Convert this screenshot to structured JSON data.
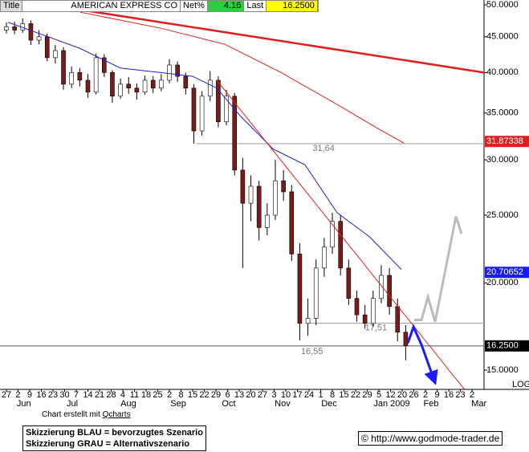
{
  "header": {
    "tab": "Title",
    "symbol": "AMERICAN EXPRESS CO",
    "net_label": "Net%",
    "net_value": "4.16",
    "last_label": "Last",
    "last_value": "16.2500"
  },
  "chart_data": {
    "type": "candlestick",
    "log_scale": true,
    "scale_label": "LOG",
    "xlim": [
      -0.55,
      41.03
    ],
    "ylim": [
      14.08,
      50.8
    ],
    "yticks": [
      {
        "value": 50,
        "label": "50.0000"
      },
      {
        "value": 45,
        "label": "45.0000"
      },
      {
        "value": 40,
        "label": "40.0000"
      },
      {
        "value": 35,
        "label": "35.0000"
      },
      {
        "value": 30,
        "label": "30.0000"
      },
      {
        "value": 25,
        "label": "25.0000"
      },
      {
        "value": 20,
        "label": "20.0000"
      },
      {
        "value": 15,
        "label": "15.0000"
      }
    ],
    "xticks": [
      {
        "value": 0,
        "label": "27"
      },
      {
        "value": 1,
        "label": "2"
      },
      {
        "value": 2,
        "label": "9"
      },
      {
        "value": 3,
        "label": "16"
      },
      {
        "value": 4,
        "label": "23"
      },
      {
        "value": 5,
        "label": "30"
      },
      {
        "value": 6,
        "label": "7"
      },
      {
        "value": 7,
        "label": "14"
      },
      {
        "value": 8,
        "label": "21"
      },
      {
        "value": 9,
        "label": "28"
      },
      {
        "value": 10,
        "label": "4"
      },
      {
        "value": 11,
        "label": "11"
      },
      {
        "value": 12,
        "label": "18"
      },
      {
        "value": 13,
        "label": "25"
      },
      {
        "value": 14,
        "label": "2"
      },
      {
        "value": 15,
        "label": "8"
      },
      {
        "value": 16,
        "label": "15"
      },
      {
        "value": 17,
        "label": "22"
      },
      {
        "value": 18,
        "label": "29"
      },
      {
        "value": 19,
        "label": "6"
      },
      {
        "value": 20,
        "label": "13"
      },
      {
        "value": 21,
        "label": "20"
      },
      {
        "value": 22,
        "label": "27"
      },
      {
        "value": 23,
        "label": "3"
      },
      {
        "value": 24,
        "label": "10"
      },
      {
        "value": 25,
        "label": "17"
      },
      {
        "value": 26,
        "label": "24"
      },
      {
        "value": 27,
        "label": "1"
      },
      {
        "value": 28,
        "label": "8"
      },
      {
        "value": 29,
        "label": "15"
      },
      {
        "value": 30,
        "label": "22"
      },
      {
        "value": 31,
        "label": "29"
      },
      {
        "value": 32,
        "label": "5"
      },
      {
        "value": 33,
        "label": "12"
      },
      {
        "value": 34,
        "label": "20"
      },
      {
        "value": 35,
        "label": "26"
      },
      {
        "value": 36,
        "label": "2"
      },
      {
        "value": 37,
        "label": "9"
      },
      {
        "value": 38,
        "label": "16"
      },
      {
        "value": 39,
        "label": "23"
      },
      {
        "value": 40,
        "label": "2"
      }
    ],
    "month_labels": [
      {
        "value": 1.5,
        "label": "Jun"
      },
      {
        "value": 5.66,
        "label": "Jul"
      },
      {
        "value": 10.48,
        "label": "Aug"
      },
      {
        "value": 14.76,
        "label": "Sep"
      },
      {
        "value": 19.1,
        "label": "Oct"
      },
      {
        "value": 23.72,
        "label": "Nov"
      },
      {
        "value": 27.72,
        "label": "Dec"
      },
      {
        "value": 33.1,
        "label": "Jan 2009"
      },
      {
        "value": 36.48,
        "label": "Feb"
      },
      {
        "value": 40.6,
        "label": "Mar"
      }
    ],
    "up_color": "#ffffff",
    "down_color": "#7a1a1a",
    "x": [
      0.0,
      0.7,
      1.4,
      2.1,
      2.8,
      3.5,
      4.2,
      4.9,
      5.6,
      6.3,
      7.0,
      7.7,
      8.4,
      9.1,
      9.8,
      10.5,
      11.2,
      11.9,
      12.6,
      13.3,
      14.0,
      14.7,
      15.4,
      16.1,
      16.8,
      17.5,
      18.2,
      18.9,
      19.6,
      20.3,
      21.0,
      21.7,
      22.4,
      23.1,
      23.8,
      24.5,
      25.2,
      25.9,
      26.6,
      27.3,
      28.0,
      28.7,
      29.4,
      30.1,
      30.8,
      31.5,
      32.2,
      32.9,
      33.6,
      34.3
    ],
    "open": [
      46,
      46.5,
      46,
      47,
      44.5,
      45,
      42,
      43,
      38.5,
      40,
      39,
      37.5,
      42,
      40,
      37,
      38.5,
      38,
      37.5,
      39,
      38,
      39,
      41,
      39.5,
      38,
      33,
      37,
      39,
      34,
      37,
      29,
      26,
      27.5,
      24,
      25,
      28,
      27,
      22,
      17.5,
      17.8,
      21,
      22.5,
      24.5,
      21,
      19,
      18,
      17.5,
      19,
      20.5,
      18.5,
      17
    ],
    "high": [
      47.2,
      47.3,
      47.8,
      47.5,
      46,
      45.5,
      43.8,
      43.5,
      40.8,
      40.6,
      39.8,
      42.6,
      42.5,
      40.3,
      39.2,
      39.4,
      38.6,
      39.6,
      39.5,
      39.8,
      41.8,
      41.5,
      40,
      38.5,
      37.6,
      40.2,
      39.5,
      37.8,
      37.4,
      30.2,
      28.5,
      28,
      26,
      30,
      29,
      27.6,
      22.8,
      19,
      21.6,
      23.2,
      25.2,
      25,
      21.6,
      19.5,
      18.6,
      19.5,
      21.2,
      21,
      19,
      17.4
    ],
    "low": [
      45.5,
      45.4,
      45.6,
      43.8,
      43.9,
      41.5,
      41.2,
      37.8,
      38,
      38.2,
      36.8,
      37.2,
      39.4,
      36.2,
      36.7,
      37.3,
      36.6,
      37.2,
      37.4,
      37.6,
      38.6,
      38.8,
      37.2,
      31.64,
      32.5,
      36.4,
      33.4,
      33.6,
      28.5,
      21,
      24.5,
      23,
      23.4,
      24.6,
      26.2,
      21.5,
      16.55,
      16.8,
      17.4,
      20.4,
      22,
      20.5,
      18.6,
      17.6,
      17.2,
      17.3,
      18.7,
      18,
      16.5,
      15.5
    ],
    "close": [
      46.5,
      46,
      47,
      44.5,
      45,
      42,
      43,
      38.5,
      40,
      39,
      37.5,
      42,
      40,
      37,
      38.5,
      38,
      37.5,
      39,
      38,
      39,
      41,
      39.5,
      38,
      33,
      37,
      39,
      34,
      37,
      29,
      26,
      27.5,
      24,
      25,
      28,
      27,
      22,
      17.5,
      17.8,
      21,
      22.5,
      24.5,
      21,
      19,
      18,
      17.5,
      19,
      20.5,
      18.5,
      17,
      16.25
    ],
    "overlays": [
      {
        "color": "#2020d0",
        "width": 1,
        "x": [
          0.14,
          3.59,
          6.34,
          9.79,
          13.24,
          16.0,
          18.07,
          20.14,
          22.9,
          25.66,
          28.41,
          31.17,
          33.93
        ],
        "values": [
          47.2,
          45.0,
          43.3,
          40.6,
          40.0,
          39.5,
          38.0,
          34.6,
          31.1,
          29.5,
          25.2,
          23.3,
          20.9
        ]
      },
      {
        "color": "#e02020",
        "width": 1,
        "x": [
          6.34,
          13.24,
          18.76,
          23.59,
          28.41,
          31.86,
          34.14
        ],
        "values": [
          48.8,
          46.3,
          43.9,
          40.0,
          36.0,
          33.3,
          31.7
        ]
      },
      {
        "color": "#e02020",
        "width": 2.5,
        "x": [
          6.34,
          41.03
        ],
        "values": [
          49.2,
          40.0
        ]
      },
      {
        "color": "#e02020",
        "width": 1,
        "x": [
          18.07,
          39.31
        ],
        "values": [
          39.0,
          14.1
        ]
      },
      {
        "color": "#1a1aff",
        "width": 3,
        "arrow": true,
        "x": [
          34.48,
          34.97,
          35.66,
          36.69
        ],
        "values": [
          16.4,
          17.3,
          16.3,
          14.6
        ]
      },
      {
        "color": "#bbbbbb",
        "width": 3,
        "x": [
          35.03,
          35.66,
          36.21,
          36.83,
          38.62,
          39.1
        ],
        "values": [
          17.7,
          17.7,
          19.1,
          17.6,
          24.9,
          23.5
        ]
      }
    ],
    "levels": [
      {
        "value": 31.64,
        "label": "31,64",
        "x_start": 16.34,
        "label_x": 26.3,
        "color": "#999999"
      },
      {
        "value": 17.51,
        "label": "17,51",
        "x_start": 26.0,
        "label_x": 30.8,
        "color": "#999999"
      },
      {
        "value": 16.25,
        "x_start": -0.55,
        "color": "#555555"
      }
    ],
    "annotations": [
      {
        "value": 16.55,
        "label": "16,55",
        "x": 25.3
      }
    ],
    "price_tags": [
      {
        "value": 31.87338,
        "label": "31.87338",
        "color": "#e02020"
      },
      {
        "value": 20.70652,
        "label": "20.70652",
        "color": "#1a1aff"
      },
      {
        "value": 16.25,
        "label": "16.2500",
        "color": "#000000"
      }
    ]
  },
  "footer": {
    "credit": "Chart erstellt mit ",
    "credit_link": "Qcharts",
    "legend_blue": "Skizzierung BLAU = bevorzugtes Szenario",
    "legend_gray": "Skizzierung GRAU = Alternativszenario",
    "source": "© http://www.godmode-trader.de"
  }
}
